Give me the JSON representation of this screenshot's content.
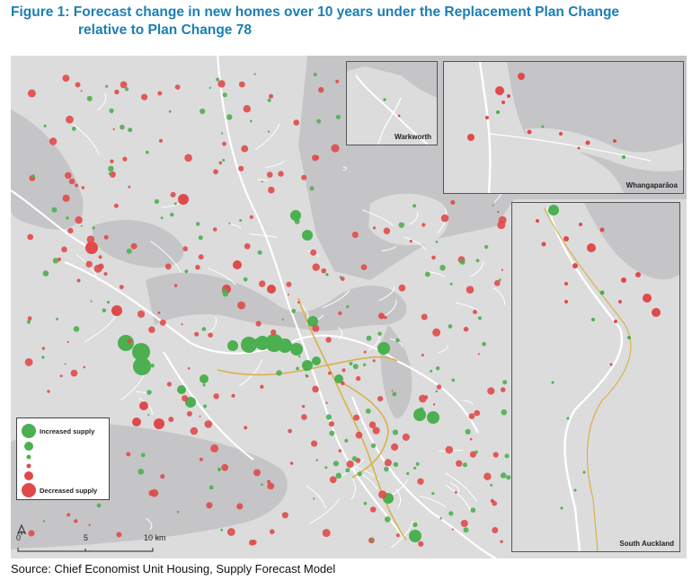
{
  "figure": {
    "title_line1": "Figure 1: Forecast change in new homes over 10 years under the Replacement Plan Change",
    "title_line2": "relative to Plan Change 78"
  },
  "insets": {
    "warkworth": "Warkworth",
    "whangaparaoa": "Whangaparāoa",
    "south_auckland": "South Auckland"
  },
  "legend": {
    "increased": "Increased supply",
    "decreased": "Decreased supply"
  },
  "scale_bar": {
    "label_0": "0",
    "label_5": "5",
    "label_10": "10 km"
  },
  "north_arrow_symbol": "north-arrow-icon",
  "colors": {
    "land": "#dcdcdc",
    "water": "#c5c5c7",
    "roads": "#ffffff",
    "motorway": "#d9b14a",
    "increased_supply": "#4caf50",
    "decreased_supply": "#e04a4a",
    "title": "#1b7fb3"
  },
  "source": "Source: Chief Economist Unit Housing, Supply Forecast Model"
}
